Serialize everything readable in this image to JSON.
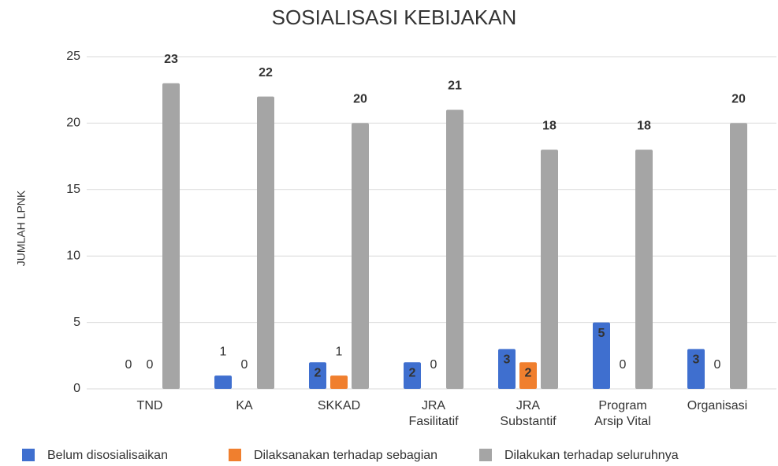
{
  "chart_data": {
    "type": "bar",
    "title": "SOSIALISASI KEBIJAKAN",
    "y_label": "JUMLAH LPNK",
    "categories": [
      [
        "TND"
      ],
      [
        "KA"
      ],
      [
        "SKKAD"
      ],
      [
        "JRA",
        "Fasilitatif"
      ],
      [
        "JRA",
        "Substantif"
      ],
      [
        "Program",
        "Arsip Vital"
      ],
      [
        "Organisasi"
      ]
    ],
    "series": [
      {
        "name": "Belum disosialisaikan",
        "color": "#3f6fcf",
        "values": [
          0,
          1,
          2,
          2,
          3,
          5,
          3
        ]
      },
      {
        "name": "Dilaksanakan terhadap sebagian",
        "color": "#f07f2e",
        "values": [
          0,
          0,
          1,
          0,
          2,
          0,
          0
        ]
      },
      {
        "name": "Dilakukan terhadap seluruhnya",
        "color": "#a5a5a5",
        "values": [
          23,
          22,
          20,
          21,
          18,
          18,
          20
        ]
      }
    ],
    "ylim": [
      0,
      25
    ],
    "yticks": [
      0,
      5,
      10,
      15,
      20,
      25
    ],
    "grid": true,
    "legend": "bottom"
  }
}
